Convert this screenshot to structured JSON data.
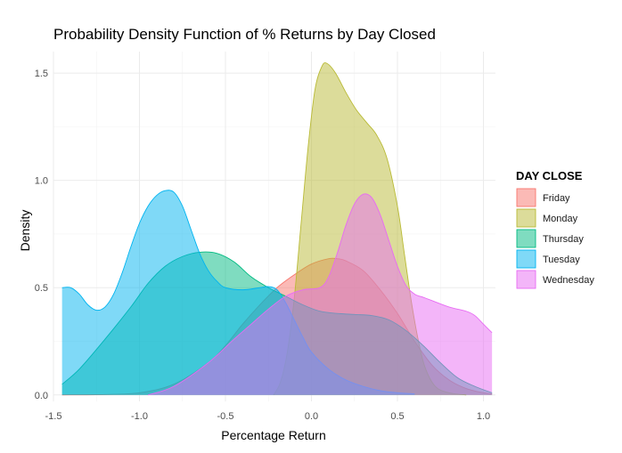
{
  "chart_data": {
    "type": "area",
    "title": "Probability Density Function of % Returns by Day Closed",
    "xlabel": "Percentage Return",
    "ylabel": "Density",
    "xlim": [
      -1.5,
      1.07
    ],
    "ylim": [
      -0.03,
      1.6
    ],
    "x_ticks": [
      -1.5,
      -1.0,
      -0.5,
      0.0,
      0.5,
      1.0
    ],
    "x_tick_labels": [
      "-1.5",
      "-1.0",
      "-0.5",
      "0.0",
      "0.5",
      "1.0"
    ],
    "y_ticks": [
      0.0,
      0.5,
      1.0,
      1.5
    ],
    "y_tick_labels": [
      "0.0",
      "0.5",
      "1.0",
      "1.5"
    ],
    "grid": true,
    "legend": {
      "title": "DAY CLOSE",
      "position": "right"
    },
    "series": [
      {
        "name": "Friday",
        "color": "#F8766D",
        "points": [
          [
            -1.45,
            0.0
          ],
          [
            -1.2,
            0.002
          ],
          [
            -1.0,
            0.01
          ],
          [
            -0.8,
            0.05
          ],
          [
            -0.6,
            0.15
          ],
          [
            -0.5,
            0.23
          ],
          [
            -0.4,
            0.33
          ],
          [
            -0.3,
            0.42
          ],
          [
            -0.2,
            0.5
          ],
          [
            -0.1,
            0.56
          ],
          [
            0.0,
            0.61
          ],
          [
            0.1,
            0.635
          ],
          [
            0.15,
            0.635
          ],
          [
            0.2,
            0.625
          ],
          [
            0.3,
            0.58
          ],
          [
            0.4,
            0.49
          ],
          [
            0.5,
            0.38
          ],
          [
            0.6,
            0.25
          ],
          [
            0.7,
            0.14
          ],
          [
            0.8,
            0.07
          ],
          [
            0.9,
            0.03
          ],
          [
            1.0,
            0.01
          ],
          [
            1.05,
            0.005
          ]
        ]
      },
      {
        "name": "Monday",
        "color": "#B9BA35",
        "points": [
          [
            -0.22,
            0.0
          ],
          [
            -0.18,
            0.06
          ],
          [
            -0.14,
            0.2
          ],
          [
            -0.1,
            0.45
          ],
          [
            -0.06,
            0.8
          ],
          [
            -0.02,
            1.15
          ],
          [
            0.02,
            1.42
          ],
          [
            0.06,
            1.53
          ],
          [
            0.09,
            1.545
          ],
          [
            0.14,
            1.5
          ],
          [
            0.2,
            1.41
          ],
          [
            0.26,
            1.33
          ],
          [
            0.32,
            1.27
          ],
          [
            0.38,
            1.21
          ],
          [
            0.44,
            1.1
          ],
          [
            0.5,
            0.88
          ],
          [
            0.54,
            0.66
          ],
          [
            0.58,
            0.44
          ],
          [
            0.62,
            0.26
          ],
          [
            0.66,
            0.13
          ],
          [
            0.72,
            0.04
          ],
          [
            0.8,
            0.01
          ],
          [
            0.9,
            0.0
          ]
        ]
      },
      {
        "name": "Thursday",
        "color": "#00BA81",
        "points": [
          [
            -1.45,
            0.05
          ],
          [
            -1.35,
            0.12
          ],
          [
            -1.2,
            0.26
          ],
          [
            -1.05,
            0.41
          ],
          [
            -0.95,
            0.52
          ],
          [
            -0.85,
            0.6
          ],
          [
            -0.75,
            0.645
          ],
          [
            -0.65,
            0.665
          ],
          [
            -0.55,
            0.66
          ],
          [
            -0.45,
            0.62
          ],
          [
            -0.35,
            0.55
          ],
          [
            -0.25,
            0.5
          ],
          [
            -0.15,
            0.46
          ],
          [
            -0.05,
            0.42
          ],
          [
            0.05,
            0.39
          ],
          [
            0.15,
            0.38
          ],
          [
            0.25,
            0.375
          ],
          [
            0.35,
            0.37
          ],
          [
            0.45,
            0.35
          ],
          [
            0.55,
            0.3
          ],
          [
            0.65,
            0.23
          ],
          [
            0.75,
            0.15
          ],
          [
            0.85,
            0.08
          ],
          [
            0.95,
            0.04
          ],
          [
            1.05,
            0.01
          ]
        ]
      },
      {
        "name": "Tuesday",
        "color": "#00B4F0",
        "points": [
          [
            -1.45,
            0.5
          ],
          [
            -1.4,
            0.5
          ],
          [
            -1.35,
            0.47
          ],
          [
            -1.3,
            0.42
          ],
          [
            -1.25,
            0.395
          ],
          [
            -1.2,
            0.41
          ],
          [
            -1.15,
            0.47
          ],
          [
            -1.1,
            0.57
          ],
          [
            -1.05,
            0.69
          ],
          [
            -1.0,
            0.8
          ],
          [
            -0.95,
            0.88
          ],
          [
            -0.9,
            0.93
          ],
          [
            -0.85,
            0.952
          ],
          [
            -0.8,
            0.945
          ],
          [
            -0.75,
            0.88
          ],
          [
            -0.7,
            0.77
          ],
          [
            -0.65,
            0.66
          ],
          [
            -0.6,
            0.58
          ],
          [
            -0.55,
            0.53
          ],
          [
            -0.5,
            0.5
          ],
          [
            -0.4,
            0.49
          ],
          [
            -0.3,
            0.5
          ],
          [
            -0.25,
            0.505
          ],
          [
            -0.2,
            0.49
          ],
          [
            -0.15,
            0.43
          ],
          [
            -0.1,
            0.35
          ],
          [
            -0.05,
            0.27
          ],
          [
            0.0,
            0.2
          ],
          [
            0.1,
            0.12
          ],
          [
            0.2,
            0.07
          ],
          [
            0.3,
            0.04
          ],
          [
            0.4,
            0.02
          ],
          [
            0.5,
            0.01
          ],
          [
            0.6,
            0.005
          ]
        ]
      },
      {
        "name": "Wednesday",
        "color": "#E76BF3",
        "points": [
          [
            -0.95,
            0.0
          ],
          [
            -0.8,
            0.04
          ],
          [
            -0.6,
            0.15
          ],
          [
            -0.45,
            0.26
          ],
          [
            -0.35,
            0.33
          ],
          [
            -0.25,
            0.4
          ],
          [
            -0.15,
            0.46
          ],
          [
            -0.05,
            0.49
          ],
          [
            0.05,
            0.5
          ],
          [
            0.1,
            0.55
          ],
          [
            0.15,
            0.66
          ],
          [
            0.2,
            0.79
          ],
          [
            0.25,
            0.89
          ],
          [
            0.3,
            0.935
          ],
          [
            0.35,
            0.92
          ],
          [
            0.4,
            0.84
          ],
          [
            0.45,
            0.72
          ],
          [
            0.5,
            0.6
          ],
          [
            0.55,
            0.51
          ],
          [
            0.6,
            0.47
          ],
          [
            0.65,
            0.455
          ],
          [
            0.7,
            0.44
          ],
          [
            0.8,
            0.41
          ],
          [
            0.9,
            0.39
          ],
          [
            0.95,
            0.37
          ],
          [
            1.0,
            0.33
          ],
          [
            1.05,
            0.29
          ]
        ]
      }
    ]
  }
}
